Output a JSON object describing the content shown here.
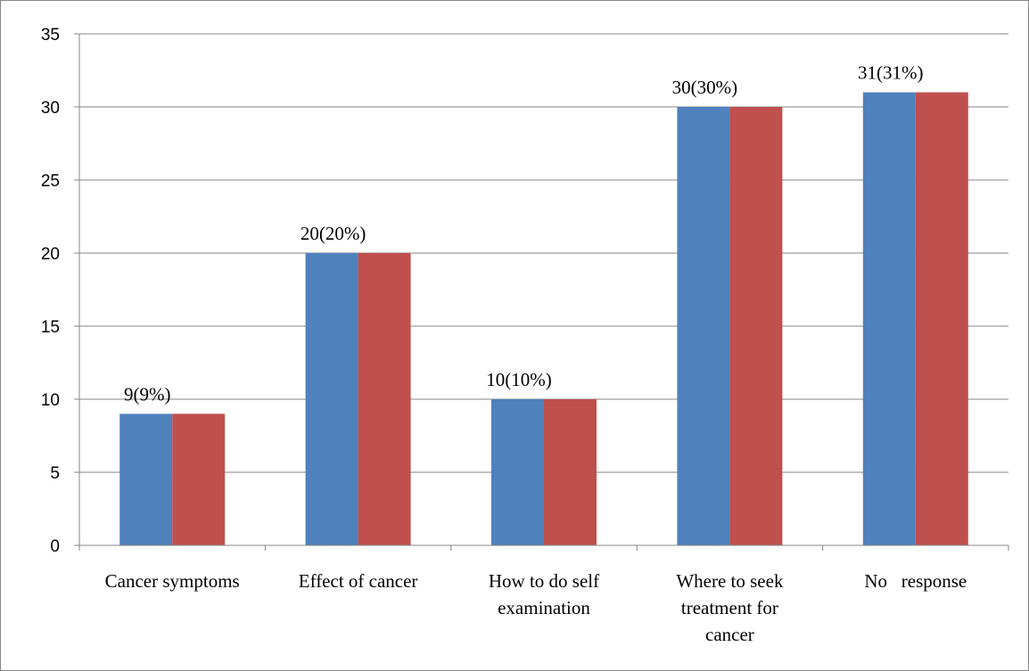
{
  "chart_data": {
    "type": "bar",
    "categories": [
      [
        "Cancer symptoms"
      ],
      [
        "Effect of cancer"
      ],
      [
        "How to do self",
        "examination"
      ],
      [
        "Where to seek",
        "treatment for",
        "cancer"
      ],
      [
        "No   response"
      ]
    ],
    "series": [
      {
        "values": [
          9,
          20,
          10,
          30,
          31
        ],
        "color": "#4f81bd"
      },
      {
        "values": [
          9,
          20,
          10,
          30,
          31
        ],
        "color": "#c0504d"
      }
    ],
    "data_labels": [
      "9(9%)",
      "20(20%)",
      "10(10%)",
      "30(30%)",
      "31(31%)"
    ],
    "ylim": [
      0,
      35
    ],
    "yticks": [
      "0",
      "5",
      "10",
      "15",
      "20",
      "25",
      "30",
      "35"
    ],
    "grid": true,
    "gridline_color": "#868686",
    "legend": "none"
  }
}
